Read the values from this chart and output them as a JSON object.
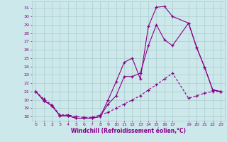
{
  "xlabel": "Windchill (Refroidissement éolien,°C)",
  "background_color": "#cce8ea",
  "grid_color": "#aacccc",
  "line_color": "#880088",
  "x_ticks": [
    0,
    1,
    2,
    3,
    4,
    5,
    6,
    7,
    8,
    9,
    10,
    11,
    12,
    13,
    14,
    15,
    16,
    17,
    19,
    20,
    21,
    22,
    23
  ],
  "ylim": [
    17.5,
    31.8
  ],
  "xlim": [
    -0.5,
    23.5
  ],
  "series1_x": [
    0,
    1,
    2,
    3,
    4,
    5,
    6,
    7,
    8,
    9,
    10,
    11,
    12,
    13,
    14,
    15,
    16,
    17,
    19,
    20,
    21,
    22,
    23
  ],
  "series1_y": [
    21.0,
    19.9,
    19.3,
    18.1,
    18.1,
    17.8,
    17.8,
    17.8,
    18.0,
    20.0,
    22.2,
    24.5,
    25.0,
    22.5,
    28.8,
    31.1,
    31.2,
    30.0,
    29.2,
    26.3,
    23.9,
    21.2,
    21.0
  ],
  "series2_x": [
    0,
    1,
    2,
    3,
    4,
    5,
    6,
    7,
    8,
    9,
    10,
    11,
    12,
    13,
    14,
    15,
    16,
    17,
    19,
    20,
    21,
    22,
    23
  ],
  "series2_y": [
    21.0,
    19.9,
    19.3,
    18.1,
    18.1,
    17.8,
    17.8,
    17.8,
    18.0,
    19.5,
    20.5,
    22.8,
    22.8,
    23.2,
    26.5,
    29.0,
    27.2,
    26.5,
    29.2,
    26.3,
    23.9,
    21.2,
    21.0
  ],
  "series3_x": [
    0,
    1,
    2,
    3,
    4,
    5,
    6,
    7,
    8,
    9,
    10,
    11,
    12,
    13,
    14,
    15,
    16,
    17,
    19,
    20,
    21,
    22,
    23
  ],
  "series3_y": [
    21.0,
    20.1,
    19.4,
    18.2,
    18.2,
    18.0,
    17.9,
    17.9,
    18.2,
    18.5,
    19.0,
    19.5,
    20.0,
    20.5,
    21.2,
    21.8,
    22.5,
    23.2,
    20.2,
    20.5,
    20.8,
    21.0,
    21.0
  ]
}
